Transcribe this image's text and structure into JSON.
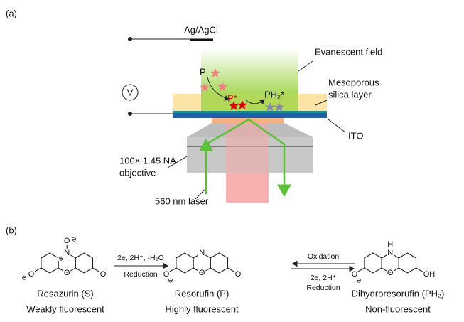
{
  "panel_a": {
    "label": "(a)",
    "electrode": "Ag/AgCl",
    "voltmeter": "V",
    "evanescent": "Evanescent field",
    "product": "P",
    "product_excited": "P*",
    "reduced_excited": "PH₂*",
    "silica": [
      "Mesoporous",
      "silica layer"
    ],
    "ito": "ITO",
    "objective": [
      "100× 1.45 NA",
      "objective"
    ],
    "laser": "560 nm laser"
  },
  "panel_b": {
    "label": "(b)",
    "reaction1": {
      "above": "2e, 2H⁺, -H₂O",
      "below": "Reduction"
    },
    "reaction2": {
      "above": "Oxidation",
      "below": [
        "2e, 2H⁺",
        "Reduction"
      ]
    },
    "compounds": [
      {
        "name": "Resazurin (S)",
        "property": "Weakly fluorescent",
        "atoms": [
          "N",
          "O",
          "O",
          "O",
          "O",
          "⊕",
          "⊖",
          "⊖"
        ]
      },
      {
        "name": "Resorufin (P)",
        "property": "Highly fluorescent",
        "atoms": [
          "N",
          "O",
          "O",
          "O",
          "⊖"
        ]
      },
      {
        "name": "Dihydroresorufin (PH₂)",
        "property": "Non-fluorescent",
        "atoms": [
          "H",
          "N",
          "O",
          "O",
          "OH",
          "⊖"
        ]
      }
    ]
  }
}
